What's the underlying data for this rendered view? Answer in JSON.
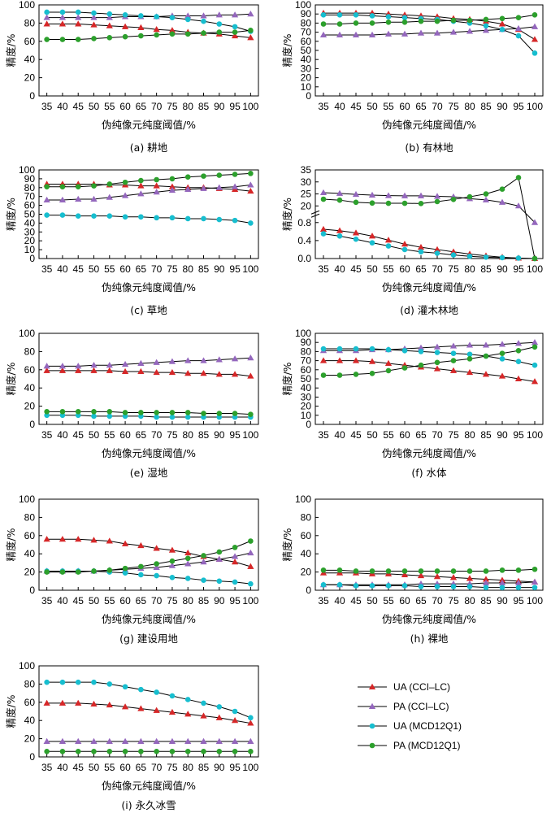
{
  "figure": {
    "xlabel": "伪纯像元纯度阈值/%",
    "ylabel": "精度/%"
  },
  "series_styles": [
    {
      "name": "UA (CCI–LC)",
      "color": "#d62728",
      "marker": "triangle-up"
    },
    {
      "name": "PA (CCI–LC)",
      "color": "#9467bd",
      "marker": "triangle-up"
    },
    {
      "name": "UA (MCD12Q1)",
      "color": "#17becf",
      "marker": "circle"
    },
    {
      "name": "PA (MCD12Q1)",
      "color": "#2ca02c",
      "marker": "circle"
    }
  ],
  "chart_data": [
    {
      "type": "line",
      "caption": "(a) 耕地",
      "x": [
        35,
        40,
        45,
        50,
        55,
        60,
        65,
        70,
        75,
        80,
        85,
        90,
        95,
        100
      ],
      "ylim": [
        0,
        100
      ],
      "yticks": [
        0,
        20,
        40,
        60,
        80,
        100
      ],
      "series": [
        {
          "name": "UA (CCI–LC)",
          "values": [
            79,
            79,
            79,
            78,
            77,
            76,
            75,
            73,
            72,
            70,
            69,
            68,
            66,
            64
          ]
        },
        {
          "name": "PA (CCI–LC)",
          "values": [
            86,
            86,
            86,
            86,
            86,
            87,
            87,
            87,
            88,
            88,
            88,
            89,
            89,
            90
          ]
        },
        {
          "name": "UA (MCD12Q1)",
          "values": [
            92,
            92,
            92,
            91,
            90,
            89,
            88,
            87,
            86,
            84,
            82,
            79,
            76,
            71
          ]
        },
        {
          "name": "PA (MCD12Q1)",
          "values": [
            62,
            62,
            62,
            63,
            64,
            65,
            66,
            67,
            68,
            68,
            69,
            70,
            70,
            72
          ]
        }
      ]
    },
    {
      "type": "line",
      "caption": "(b) 有林地",
      "x": [
        35,
        40,
        45,
        50,
        55,
        60,
        65,
        70,
        75,
        80,
        85,
        90,
        95,
        100
      ],
      "ylim": [
        0,
        100
      ],
      "yticks": [
        0,
        10,
        20,
        30,
        40,
        50,
        60,
        70,
        80,
        90,
        100
      ],
      "series": [
        {
          "name": "UA (CCI–LC)",
          "values": [
            91,
            91,
            91,
            91,
            90,
            89,
            88,
            87,
            85,
            84,
            82,
            79,
            73,
            62
          ]
        },
        {
          "name": "PA (CCI–LC)",
          "values": [
            67,
            67,
            67,
            67,
            68,
            68,
            69,
            69,
            70,
            71,
            72,
            73,
            74,
            76
          ]
        },
        {
          "name": "UA (MCD12Q1)",
          "values": [
            89,
            89,
            89,
            88,
            87,
            86,
            85,
            84,
            82,
            80,
            77,
            73,
            66,
            47
          ]
        },
        {
          "name": "PA (MCD12Q1)",
          "values": [
            79,
            79,
            80,
            80,
            81,
            81,
            82,
            82,
            83,
            83,
            84,
            85,
            86,
            89
          ]
        }
      ]
    },
    {
      "type": "line",
      "caption": "(c) 草地",
      "x": [
        35,
        40,
        45,
        50,
        55,
        60,
        65,
        70,
        75,
        80,
        85,
        90,
        95,
        100
      ],
      "ylim": [
        0,
        100
      ],
      "yticks": [
        0,
        10,
        20,
        30,
        40,
        50,
        60,
        70,
        80,
        90,
        100
      ],
      "series": [
        {
          "name": "UA (CCI–LC)",
          "values": [
            84,
            84,
            84,
            84,
            83,
            83,
            82,
            82,
            81,
            80,
            80,
            79,
            78,
            76
          ]
        },
        {
          "name": "PA (CCI–LC)",
          "values": [
            66,
            66,
            67,
            67,
            69,
            71,
            73,
            75,
            77,
            78,
            79,
            80,
            81,
            83
          ]
        },
        {
          "name": "UA (MCD12Q1)",
          "values": [
            49,
            49,
            48,
            48,
            48,
            47,
            47,
            46,
            46,
            45,
            45,
            44,
            43,
            40
          ]
        },
        {
          "name": "PA (MCD12Q1)",
          "values": [
            81,
            81,
            81,
            82,
            84,
            86,
            88,
            89,
            90,
            92,
            93,
            94,
            95,
            96
          ]
        }
      ]
    },
    {
      "type": "line",
      "caption": "(d) 灌木林地",
      "broken_axis": true,
      "x": [
        35,
        40,
        45,
        50,
        55,
        60,
        65,
        70,
        75,
        80,
        85,
        90,
        95,
        100
      ],
      "lower_yticks": [
        "0.0",
        "0.4",
        "0.8"
      ],
      "upper_yticks": [
        "20",
        "25",
        "30",
        "35"
      ],
      "series": [
        {
          "name": "UA (CCI–LC)",
          "values": [
            0.65,
            0.62,
            0.57,
            0.5,
            0.41,
            0.32,
            0.25,
            0.2,
            0.15,
            0.1,
            0.06,
            0.03,
            0.01,
            0.0
          ]
        },
        {
          "name": "PA (CCI–LC)",
          "values": [
            25.5,
            25.2,
            24.8,
            24.5,
            24.3,
            24.2,
            24.2,
            24.0,
            23.8,
            23.0,
            22.5,
            21.5,
            20.0,
            0.8
          ]
        },
        {
          "name": "UA (MCD12Q1)",
          "values": [
            0.55,
            0.5,
            0.43,
            0.35,
            0.28,
            0.2,
            0.15,
            0.12,
            0.08,
            0.05,
            0.03,
            0.02,
            0.01,
            0.0
          ]
        },
        {
          "name": "PA (MCD12Q1)",
          "values": [
            22.8,
            22.4,
            21.5,
            21.2,
            21.1,
            21.1,
            21.0,
            21.8,
            22.7,
            23.8,
            25.0,
            27.0,
            31.8,
            0.0
          ]
        }
      ]
    },
    {
      "type": "line",
      "caption": "(e) 湿地",
      "x": [
        35,
        40,
        45,
        50,
        55,
        60,
        65,
        70,
        75,
        80,
        85,
        90,
        95,
        100
      ],
      "ylim": [
        0,
        100
      ],
      "yticks": [
        0,
        20,
        40,
        60,
        80,
        100
      ],
      "series": [
        {
          "name": "UA (CCI–LC)",
          "values": [
            59,
            59,
            59,
            59,
            59,
            58,
            58,
            57,
            57,
            56,
            56,
            55,
            55,
            53
          ]
        },
        {
          "name": "PA (CCI–LC)",
          "values": [
            64,
            64,
            64,
            65,
            65,
            66,
            67,
            68,
            69,
            70,
            70,
            71,
            72,
            73
          ]
        },
        {
          "name": "UA (MCD12Q1)",
          "values": [
            10,
            10,
            10,
            9,
            9,
            9,
            9,
            8,
            8,
            8,
            8,
            8,
            8,
            8
          ]
        },
        {
          "name": "PA (MCD12Q1)",
          "values": [
            14,
            14,
            14,
            14,
            14,
            13,
            13,
            13,
            13,
            13,
            12,
            12,
            12,
            11
          ]
        }
      ]
    },
    {
      "type": "line",
      "caption": "(f) 水体",
      "x": [
        35,
        40,
        45,
        50,
        55,
        60,
        65,
        70,
        75,
        80,
        85,
        90,
        95,
        100
      ],
      "ylim": [
        0,
        100
      ],
      "yticks": [
        0,
        10,
        20,
        30,
        40,
        50,
        60,
        70,
        80,
        90,
        100
      ],
      "series": [
        {
          "name": "UA (CCI–LC)",
          "values": [
            70,
            70,
            70,
            69,
            67,
            65,
            63,
            61,
            59,
            57,
            55,
            53,
            50,
            47
          ]
        },
        {
          "name": "PA (CCI–LC)",
          "values": [
            81,
            81,
            81,
            82,
            82,
            83,
            84,
            85,
            86,
            87,
            87,
            88,
            89,
            90
          ]
        },
        {
          "name": "UA (MCD12Q1)",
          "values": [
            83,
            83,
            83,
            83,
            82,
            81,
            80,
            79,
            78,
            77,
            75,
            72,
            69,
            65
          ]
        },
        {
          "name": "PA (MCD12Q1)",
          "values": [
            54,
            54,
            55,
            56,
            59,
            62,
            65,
            68,
            70,
            72,
            75,
            78,
            81,
            85
          ]
        }
      ]
    },
    {
      "type": "line",
      "caption": "(g) 建设用地",
      "x": [
        35,
        40,
        45,
        50,
        55,
        60,
        65,
        70,
        75,
        80,
        85,
        90,
        95,
        100
      ],
      "ylim": [
        0,
        100
      ],
      "yticks": [
        0,
        20,
        40,
        60,
        80,
        100
      ],
      "series": [
        {
          "name": "UA (CCI–LC)",
          "values": [
            56,
            56,
            56,
            55,
            54,
            51,
            49,
            46,
            44,
            41,
            37,
            34,
            31,
            26
          ]
        },
        {
          "name": "PA (CCI–LC)",
          "values": [
            21,
            21,
            21,
            21,
            22,
            23,
            24,
            25,
            27,
            29,
            31,
            34,
            37,
            41
          ]
        },
        {
          "name": "UA (MCD12Q1)",
          "values": [
            21,
            21,
            21,
            21,
            20,
            19,
            17,
            16,
            14,
            13,
            11,
            10,
            9,
            7
          ]
        },
        {
          "name": "PA (MCD12Q1)",
          "values": [
            20,
            20,
            20,
            21,
            22,
            24,
            26,
            29,
            32,
            35,
            38,
            42,
            47,
            54
          ]
        }
      ]
    },
    {
      "type": "line",
      "caption": "(h) 裸地",
      "x": [
        35,
        40,
        45,
        50,
        55,
        60,
        65,
        70,
        75,
        80,
        85,
        90,
        95,
        100
      ],
      "ylim": [
        0,
        100
      ],
      "yticks": [
        0,
        20,
        40,
        60,
        80,
        100
      ],
      "series": [
        {
          "name": "UA (CCI–LC)",
          "values": [
            19,
            19,
            19,
            18,
            18,
            17,
            16,
            15,
            14,
            13,
            12,
            11,
            10,
            9
          ]
        },
        {
          "name": "PA (CCI–LC)",
          "values": [
            6,
            6,
            6,
            6,
            6,
            6,
            7,
            7,
            7,
            7,
            8,
            8,
            8,
            9
          ]
        },
        {
          "name": "UA (MCD12Q1)",
          "values": [
            6,
            6,
            5,
            5,
            5,
            5,
            4,
            4,
            4,
            4,
            3,
            3,
            3,
            3
          ]
        },
        {
          "name": "PA (MCD12Q1)",
          "values": [
            22,
            22,
            21,
            21,
            21,
            21,
            21,
            21,
            21,
            21,
            21,
            22,
            22,
            23
          ]
        }
      ]
    },
    {
      "type": "line",
      "caption": "(i) 永久冰雪",
      "x": [
        35,
        40,
        45,
        50,
        55,
        60,
        65,
        70,
        75,
        80,
        85,
        90,
        95,
        100
      ],
      "ylim": [
        0,
        100
      ],
      "yticks": [
        0,
        20,
        40,
        60,
        80,
        100
      ],
      "series": [
        {
          "name": "UA (CCI–LC)",
          "values": [
            59,
            59,
            59,
            58,
            57,
            55,
            53,
            51,
            49,
            47,
            45,
            43,
            40,
            37
          ]
        },
        {
          "name": "PA (CCI–LC)",
          "values": [
            17,
            17,
            17,
            17,
            17,
            17,
            17,
            17,
            17,
            17,
            17,
            17,
            17,
            17
          ]
        },
        {
          "name": "UA (MCD12Q1)",
          "values": [
            82,
            82,
            82,
            82,
            80,
            77,
            74,
            71,
            67,
            63,
            59,
            55,
            50,
            43
          ]
        },
        {
          "name": "PA (MCD12Q1)",
          "values": [
            6,
            6,
            6,
            6,
            6,
            6,
            6,
            6,
            6,
            6,
            6,
            6,
            6,
            6
          ]
        }
      ]
    }
  ]
}
